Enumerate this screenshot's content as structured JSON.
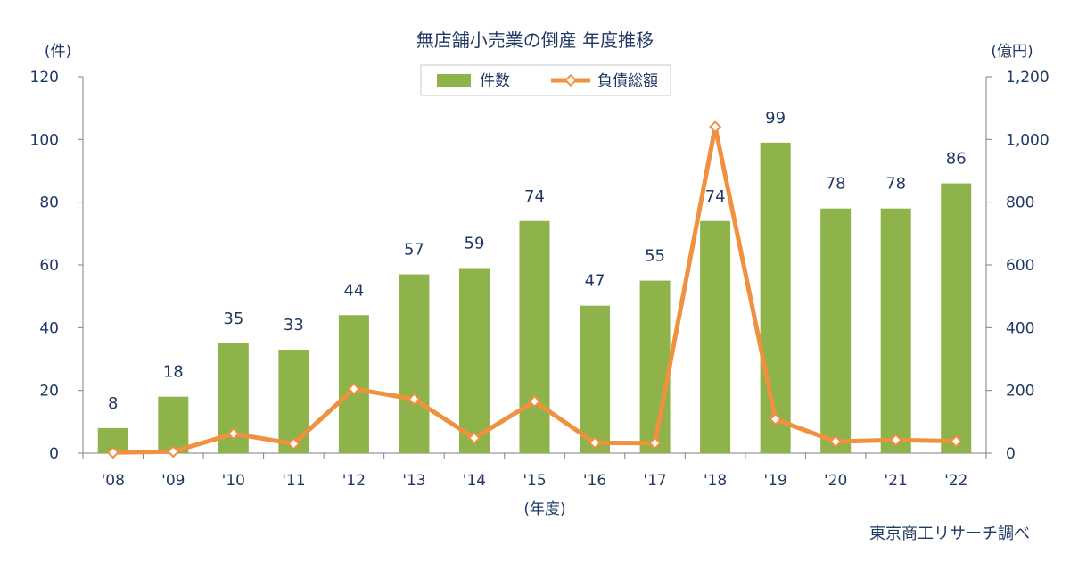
{
  "chart_data": {
    "type": "bar",
    "title": "無店舗小売業の倒産 年度推移",
    "categories": [
      "'08",
      "'09",
      "'10",
      "'11",
      "'12",
      "'13",
      "'14",
      "'15",
      "'16",
      "'17",
      "'18",
      "'19",
      "'20",
      "'21",
      "'22"
    ],
    "xlabel": "(年度)",
    "y_left": {
      "unit": "(件)",
      "min": 0,
      "max": 120,
      "ticks": [
        "0",
        "20",
        "40",
        "60",
        "80",
        "100",
        "120"
      ]
    },
    "y_right": {
      "unit": "(億円)",
      "min": 0,
      "max": 1200,
      "ticks": [
        "0",
        "200",
        "400",
        "600",
        "800",
        "1,000",
        "1,200"
      ]
    },
    "series": [
      {
        "name": "件数",
        "type": "bar",
        "axis": "left",
        "color": "#8db34a",
        "values": [
          8,
          18,
          35,
          33,
          44,
          57,
          59,
          74,
          47,
          55,
          74,
          99,
          78,
          78,
          86
        ]
      },
      {
        "name": "負債総額",
        "type": "line",
        "axis": "right",
        "color": "#f0913f",
        "values": [
          2,
          5,
          62,
          30,
          205,
          172,
          48,
          165,
          33,
          32,
          1040,
          108,
          37,
          42,
          38
        ]
      }
    ],
    "legend_position": "top-center",
    "grid": false,
    "source": "東京商工リサーチ調べ"
  }
}
